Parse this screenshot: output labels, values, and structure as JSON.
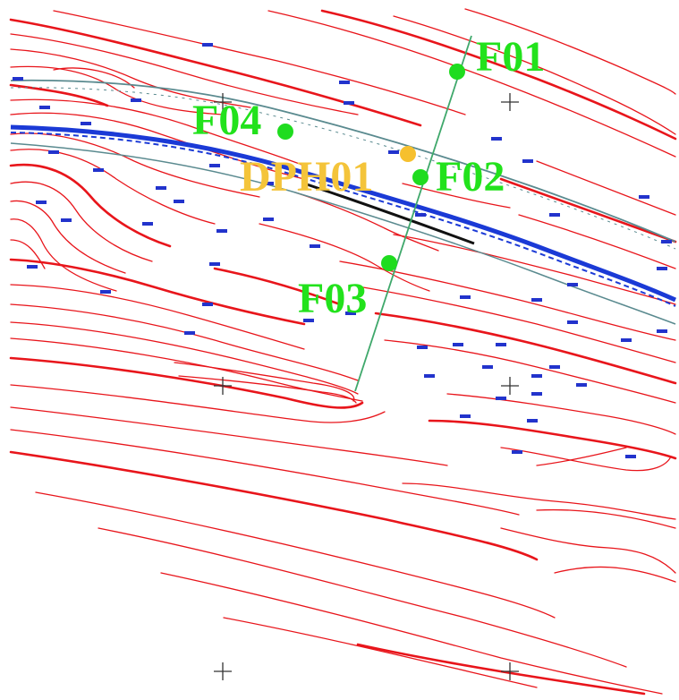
{
  "map": {
    "colors": {
      "contour": "#e8151b",
      "survey_line": "#3fa86b",
      "feature_point": "#1fdc1f",
      "feature_label": "#22e21c",
      "dph_point": "#f6c02e",
      "dph_label": "#f4c43a",
      "road_band": "#1b3ad6",
      "road_outline": "#5a8a8f",
      "tick_marks": "#2233cc",
      "grid_cross": "#333333"
    },
    "points": {
      "f01": {
        "label": "F01"
      },
      "f02": {
        "label": "F02"
      },
      "f03": {
        "label": "F03"
      },
      "f04": {
        "label": "F04"
      },
      "dph01": {
        "label": "DPH01"
      }
    },
    "icons": {
      "grid_cross": "plus-cross-icon",
      "feature_point": "green-dot-icon",
      "dph_point": "orange-dot-icon"
    }
  }
}
